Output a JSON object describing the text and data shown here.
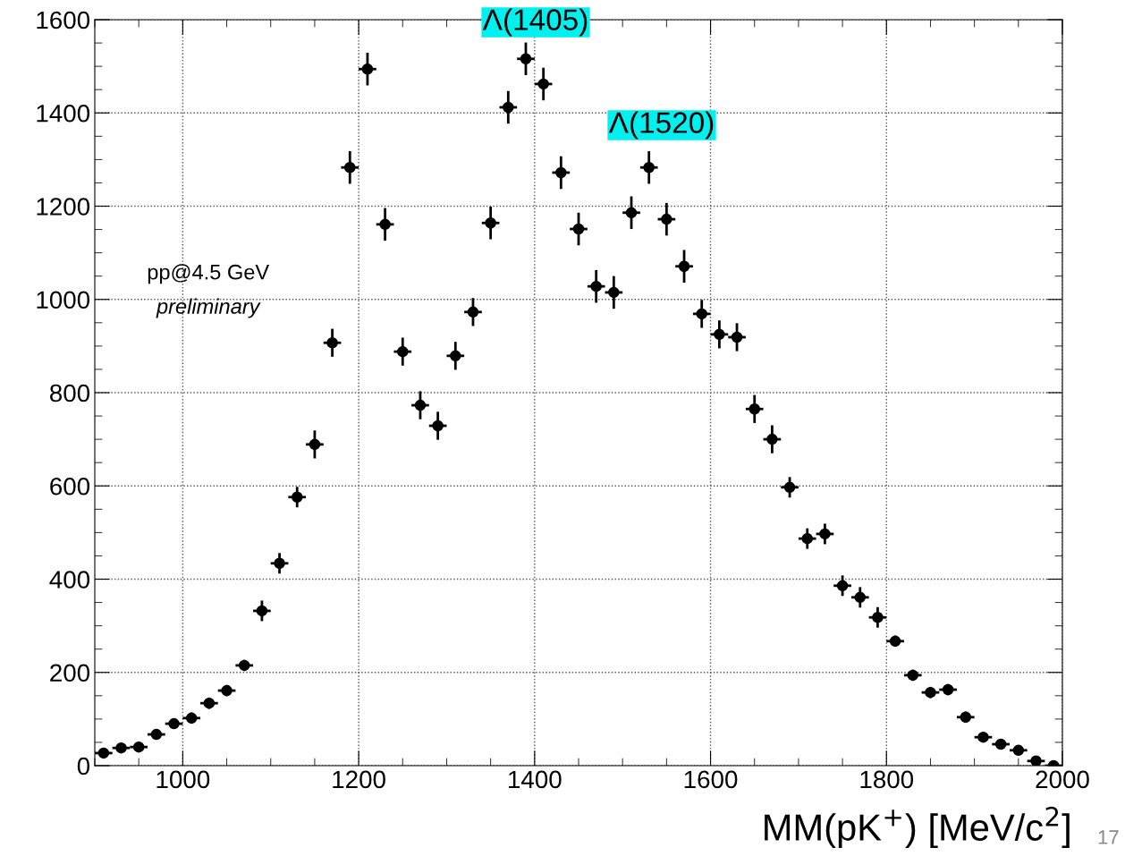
{
  "chart_data": {
    "type": "scatter",
    "xlabel": "MM(pK$^{+}$) [MeV/c$^{2}$]",
    "x": [
      910,
      930,
      950,
      970,
      990,
      1010,
      1030,
      1050,
      1070,
      1090,
      1110,
      1130,
      1150,
      1170,
      1190,
      1210,
      1230,
      1250,
      1270,
      1290,
      1310,
      1330,
      1350,
      1370,
      1390,
      1410,
      1430,
      1450,
      1470,
      1490,
      1510,
      1530,
      1550,
      1570,
      1590,
      1610,
      1630,
      1650,
      1670,
      1690,
      1710,
      1730,
      1750,
      1770,
      1790,
      1810,
      1830,
      1850,
      1870,
      1890,
      1910,
      1930,
      1950,
      1970,
      1990
    ],
    "series": [
      {
        "color": "#000000",
        "values": [
          27,
          38,
          40,
          67,
          90,
          102,
          134,
          161,
          215,
          332,
          434,
          576,
          689,
          907,
          1283,
          1494,
          1161,
          888,
          773,
          729,
          879,
          973,
          1164,
          1412,
          1516,
          1462,
          1272,
          1151,
          1028,
          1015,
          1186,
          1283,
          1172,
          1071,
          969,
          925,
          919,
          765,
          700,
          597,
          487,
          497,
          386,
          361,
          318,
          267,
          194,
          157,
          163,
          104,
          61,
          46,
          33,
          10,
          0
        ],
        "errors": [
          8,
          8,
          8,
          8,
          8,
          12,
          12,
          12,
          12,
          22,
          22,
          22,
          30,
          30,
          35,
          35,
          35,
          30,
          30,
          30,
          30,
          30,
          35,
          35,
          35,
          35,
          35,
          35,
          35,
          35,
          35,
          35,
          35,
          35,
          30,
          30,
          30,
          30,
          30,
          22,
          22,
          22,
          22,
          22,
          22,
          12,
          12,
          12,
          12,
          12,
          8,
          8,
          8,
          8,
          8
        ],
        "xerrors": [
          10,
          10,
          10,
          10,
          10,
          10,
          10,
          10,
          10,
          10,
          10,
          10,
          10,
          10,
          10,
          10,
          10,
          10,
          10,
          10,
          10,
          10,
          10,
          10,
          10,
          10,
          10,
          10,
          10,
          10,
          10,
          10,
          10,
          10,
          10,
          10,
          10,
          10,
          10,
          10,
          10,
          10,
          10,
          10,
          10,
          10,
          10,
          10,
          10,
          10,
          10,
          10,
          10,
          10,
          10
        ]
      }
    ],
    "xlim": [
      900,
      2000
    ],
    "ylim": [
      0,
      1600
    ],
    "xticks": [
      1000,
      1200,
      1400,
      1600,
      1800,
      2000
    ],
    "yticks": [
      0,
      200,
      400,
      600,
      800,
      1000,
      1200,
      1400,
      1600
    ],
    "grid": true,
    "marker": "circle",
    "annotations": [
      "Λ(1405)",
      "Λ(1520)",
      "pp@4.5 GeV",
      "preliminary",
      "17"
    ]
  }
}
